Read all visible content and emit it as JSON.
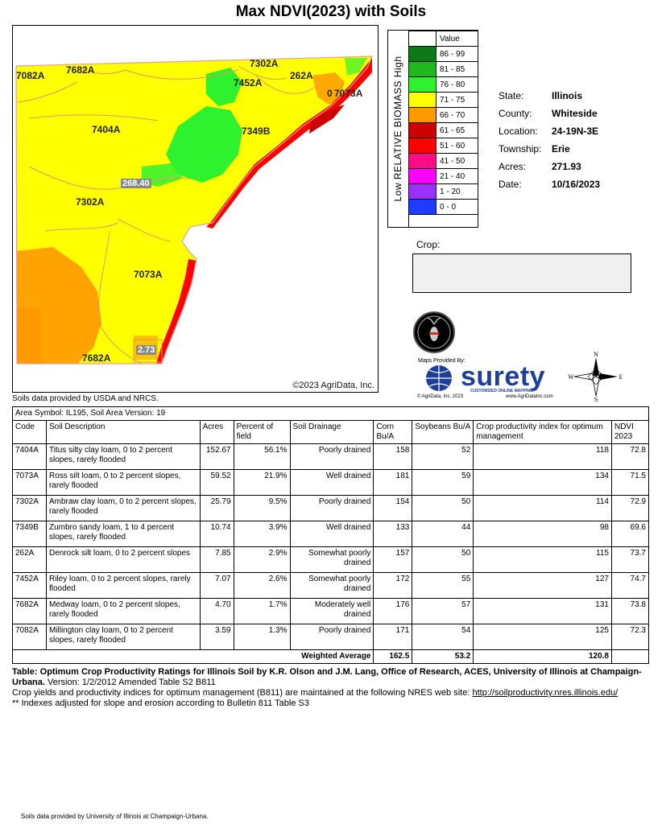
{
  "title": "Max NDVI(2023) with Soils",
  "map": {
    "labels": {
      "l7082A": "7082A",
      "l7682A_top": "7682A",
      "l7302A_top": "7302A",
      "l7452A": "7452A",
      "l262A": "262A",
      "l7073A_top": "7073A",
      "l7404A": "7404A",
      "l7349B": "7349B",
      "l7302A_mid": "7302A",
      "l7073A_mid": "7073A",
      "l7682A_bot": "7682A",
      "elev1": "268.40",
      "elev2": "2.73",
      "zero": "0"
    },
    "copyright": "©2023 AgriData, Inc."
  },
  "soils_source": "Soils data provided by USDA and NRCS.",
  "legend": {
    "header": "Value",
    "vertical_label": "Low RELATIVE BIOMASS High",
    "rows": [
      {
        "color": "#0b7a17",
        "label": "86 - 99"
      },
      {
        "color": "#1fb91f",
        "label": "81 - 85"
      },
      {
        "color": "#2ff22f",
        "label": "76 - 80"
      },
      {
        "color": "#ffff00",
        "label": "71 - 75"
      },
      {
        "color": "#ff9900",
        "label": "66 - 70"
      },
      {
        "color": "#cc0000",
        "label": "61 - 65"
      },
      {
        "color": "#ff0000",
        "label": "51 - 60"
      },
      {
        "color": "#ff0b87",
        "label": "41 - 50"
      },
      {
        "color": "#ff00ff",
        "label": "21 - 40"
      },
      {
        "color": "#9b30ff",
        "label": "1 - 20"
      },
      {
        "color": "#1e3cff",
        "label": "0 - 0"
      }
    ]
  },
  "info": {
    "state_k": "State:",
    "state_v": "Illinois",
    "county_k": "County:",
    "county_v": "Whiteside",
    "location_k": "Location:",
    "location_v": "24-19N-3E",
    "township_k": "Township:",
    "township_v": "Erie",
    "acres_k": "Acres:",
    "acres_v": "271.93",
    "date_k": "Date:",
    "date_v": "10/16/2023"
  },
  "crop_label": "Crop:",
  "branding": {
    "maps_provided_by": "Maps Provided By:",
    "surety": "surety",
    "surety_sub": "CUSTOMIZED ONLINE MAPPING",
    "agridata": "© AgriData, Inc. 2023",
    "url": "www.AgriDataInc.com",
    "compass_n": "N",
    "compass_s": "S",
    "compass_e": "E",
    "compass_w": "W"
  },
  "table": {
    "area_symbol": "Area Symbol: IL195, Soil Area Version: 19",
    "headers": {
      "code": "Code",
      "desc": "Soil Description",
      "acres": "Acres",
      "pct": "Percent of field",
      "drainage": "Soil Drainage",
      "corn": "Corn Bu/A",
      "soy": "Soybeans Bu/A",
      "cpi": "Crop productivity index for optimum management",
      "ndvi": "NDVI 2023"
    },
    "rows": [
      {
        "code": "7404A",
        "desc": "Titus silty clay loam, 0 to 2 percent slopes, rarely flooded",
        "acres": "152.67",
        "pct": "56.1%",
        "drainage": "Poorly drained",
        "corn": "158",
        "soy": "52",
        "cpi": "118",
        "ndvi": "72.8"
      },
      {
        "code": "7073A",
        "desc": "Ross silt loam, 0 to 2 percent slopes, rarely flooded",
        "acres": "59.52",
        "pct": "21.9%",
        "drainage": "Well drained",
        "corn": "181",
        "soy": "59",
        "cpi": "134",
        "ndvi": "71.5"
      },
      {
        "code": "7302A",
        "desc": "Ambraw clay loam, 0 to 2 percent slopes, rarely flooded",
        "acres": "25.79",
        "pct": "9.5%",
        "drainage": "Poorly drained",
        "corn": "154",
        "soy": "50",
        "cpi": "114",
        "ndvi": "72.9"
      },
      {
        "code": "7349B",
        "desc": "Zumbro sandy loam, 1 to 4 percent slopes, rarely flooded",
        "acres": "10.74",
        "pct": "3.9%",
        "drainage": "Well drained",
        "corn": "133",
        "soy": "44",
        "cpi": "98",
        "ndvi": "69.6"
      },
      {
        "code": "262A",
        "desc": "Denrock silt loam, 0 to 2 percent slopes",
        "acres": "7.85",
        "pct": "2.9%",
        "drainage": "Somewhat poorly drained",
        "corn": "157",
        "soy": "50",
        "cpi": "115",
        "ndvi": "73.7"
      },
      {
        "code": "7452A",
        "desc": "Riley loam, 0 to 2 percent slopes, rarely flooded",
        "acres": "7.07",
        "pct": "2.6%",
        "drainage": "Somewhat poorly drained",
        "corn": "172",
        "soy": "55",
        "cpi": "127",
        "ndvi": "74.7"
      },
      {
        "code": "7682A",
        "desc": "Medway loam, 0 to 2 percent slopes, rarely flooded",
        "acres": "4.70",
        "pct": "1.7%",
        "drainage": "Moderately well drained",
        "corn": "176",
        "soy": "57",
        "cpi": "131",
        "ndvi": "73.8"
      },
      {
        "code": "7082A",
        "desc": "Millington clay loam, 0 to 2 percent slopes, rarely flooded",
        "acres": "3.59",
        "pct": "1.3%",
        "drainage": "Poorly drained",
        "corn": "171",
        "soy": "54",
        "cpi": "125",
        "ndvi": "72.3"
      }
    ],
    "weighted_label": "Weighted Average",
    "weighted_corn": "162.5",
    "weighted_soy": "53.2",
    "weighted_cpi": "120.8"
  },
  "footer": {
    "line1_bold": "Table: Optimum Crop Productivity Ratings for Illinois Soil by K.R. Olson and J.M. Lang, Office of Research, ACES, University of Illinois at Champaign-Urbana.",
    "line1_rest": " Version: 1/2/2012 Amended Table S2 B811",
    "line2": "Crop yields and productivity indices for optimum management (B811) are maintained at the following NRES web site: ",
    "link": "http://soilproductivity.nres.illinois.edu/",
    "line3": "** Indexes adjusted for slope and erosion according to Bulletin 811 Table S3"
  },
  "bottom_source": "Soils data provided by University of Illinois at Champaign-Urbana."
}
